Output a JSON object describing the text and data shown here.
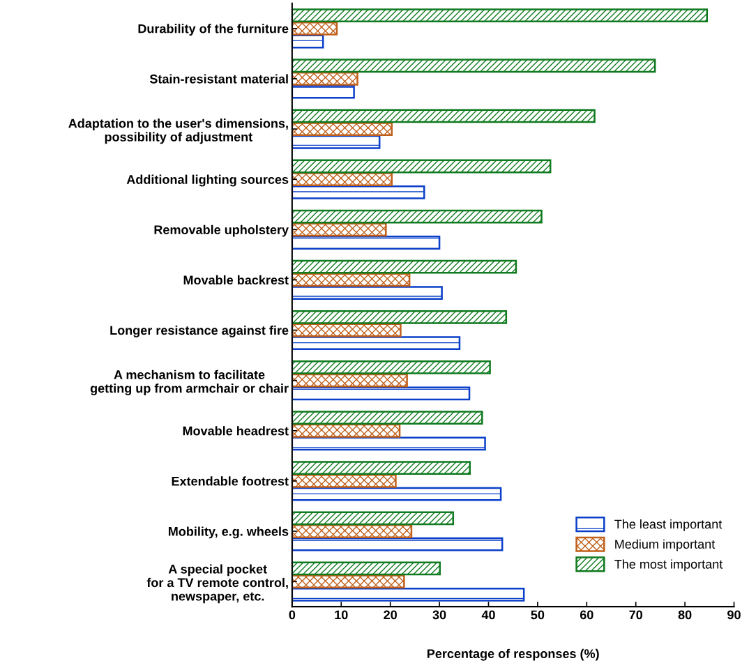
{
  "chart_data": {
    "type": "bar",
    "orientation": "horizontal",
    "xlabel": "Percentage of responses (%)",
    "categories": [
      "Durability of the furniture",
      "Stain-resistant material",
      "Adaptation to the user's dimensions,\npossibility of adjustment",
      "Additional lighting sources",
      "Removable upholstery",
      "Movable backrest",
      "Longer resistance against fire",
      "A mechanism to facilitate\ngetting up from armchair or chair",
      "Movable headrest",
      "Extendable footrest",
      "Mobility, e.g. wheels",
      "A special pocket\nfor a TV remote control,\nnewspaper, etc."
    ],
    "series": [
      {
        "name": "The least important",
        "color": "#0a3fc9",
        "values": [
          6.3,
          12.6,
          17.8,
          26.9,
          30.0,
          30.5,
          34.1,
          36.1,
          39.3,
          42.5,
          42.8,
          47.2
        ]
      },
      {
        "name": "Medium important",
        "color": "#c0601a",
        "values": [
          9.1,
          13.3,
          20.3,
          20.3,
          19.1,
          23.9,
          22.1,
          23.4,
          21.9,
          21.1,
          24.3,
          22.8
        ]
      },
      {
        "name": "The most important",
        "color": "#0f7a1f",
        "values": [
          84.5,
          73.9,
          61.6,
          52.6,
          50.8,
          45.6,
          43.6,
          40.3,
          38.7,
          36.2,
          32.8,
          30.1
        ]
      }
    ],
    "xlim": [
      0,
      90
    ],
    "xticks": [
      0,
      10,
      20,
      30,
      40,
      50,
      60,
      70,
      80,
      90
    ],
    "grid": false,
    "legend": "bottom right"
  }
}
